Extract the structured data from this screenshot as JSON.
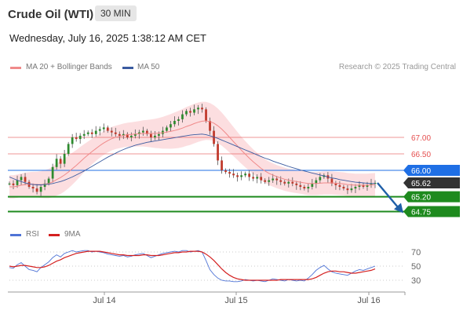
{
  "header": {
    "title": "Crude Oil (WTI)",
    "timeframe": "30 MIN",
    "datetime": "Wednesday, July 16, 2025 1:38:12 AM CET"
  },
  "legend": {
    "items": [
      {
        "label": "MA 20 + Bollinger Bands",
        "color": "#f08a8a"
      },
      {
        "label": "MA 50",
        "color": "#3a5ba0"
      }
    ],
    "credit": "Research © 2025 Trading Central"
  },
  "chart_data": [
    {
      "type": "candlestick",
      "x_ticks": [
        "Jul 14",
        "Jul 15",
        "Jul 16"
      ],
      "price_levels": [
        {
          "value": 67.0,
          "label": "67.00",
          "kind": "resistance",
          "color": "#e55050"
        },
        {
          "value": 66.5,
          "label": "66.50",
          "kind": "resistance",
          "color": "#e55050"
        },
        {
          "value": 66.0,
          "label": "66.00",
          "kind": "pivot",
          "color": "#1f6fe5"
        },
        {
          "value": 65.62,
          "label": "65.62",
          "kind": "last-price",
          "color": "#333333"
        },
        {
          "value": 65.2,
          "label": "65.20",
          "kind": "support",
          "color": "#1e8a1e"
        },
        {
          "value": 64.75,
          "label": "64.75",
          "kind": "support",
          "color": "#1e8a1e"
        }
      ],
      "close": [
        65.6,
        65.55,
        65.7,
        65.8,
        65.65,
        65.5,
        65.45,
        65.35,
        65.5,
        65.6,
        65.75,
        66.1,
        66.35,
        66.2,
        66.5,
        66.8,
        67.0,
        66.95,
        67.05,
        67.1,
        67.15,
        67.1,
        67.2,
        67.25,
        67.3,
        67.2,
        67.15,
        67.1,
        67.05,
        67.1,
        67.0,
        67.05,
        67.1,
        67.15,
        67.2,
        67.1,
        67.0,
        67.05,
        67.1,
        67.2,
        67.3,
        67.4,
        67.5,
        67.55,
        67.7,
        67.8,
        67.75,
        67.85,
        67.9,
        67.85,
        67.5,
        67.2,
        66.8,
        66.3,
        66.0,
        65.95,
        65.9,
        65.85,
        65.8,
        65.85,
        65.9,
        65.8,
        65.75,
        65.8,
        65.7,
        65.65,
        65.7,
        65.75,
        65.7,
        65.65,
        65.6,
        65.65,
        65.6,
        65.55,
        65.5,
        65.45,
        65.5,
        65.6,
        65.7,
        65.8,
        65.85,
        65.75,
        65.6,
        65.55,
        65.5,
        65.45,
        65.4,
        65.45,
        65.5,
        65.55,
        65.5,
        65.55,
        65.6,
        65.62
      ],
      "ma20": [
        65.5,
        65.5,
        65.52,
        65.55,
        65.57,
        65.58,
        65.58,
        65.57,
        65.57,
        65.58,
        65.6,
        65.65,
        65.72,
        65.78,
        65.86,
        65.95,
        66.05,
        66.15,
        66.26,
        66.37,
        66.47,
        66.57,
        66.66,
        66.75,
        66.83,
        66.9,
        66.96,
        67.0,
        67.03,
        67.06,
        67.08,
        67.09,
        67.1,
        67.11,
        67.12,
        67.12,
        67.12,
        67.12,
        67.13,
        67.14,
        67.16,
        67.18,
        67.21,
        67.24,
        67.28,
        67.33,
        67.37,
        67.42,
        67.46,
        67.49,
        67.5,
        67.48,
        67.43,
        67.35,
        67.25,
        67.13,
        67.0,
        66.87,
        66.74,
        66.61,
        66.49,
        66.37,
        66.26,
        66.16,
        66.06,
        65.98,
        65.91,
        65.86,
        65.81,
        65.77,
        65.73,
        65.7,
        65.68,
        65.66,
        65.64,
        65.62,
        65.6,
        65.6,
        65.6,
        65.61,
        65.62,
        65.62,
        65.62,
        65.61,
        65.6,
        65.59,
        65.57,
        65.56,
        65.55,
        65.55,
        65.55,
        65.55,
        65.56,
        65.57
      ],
      "ma50": [
        65.8,
        65.75,
        65.7,
        65.66,
        65.62,
        65.59,
        65.57,
        65.56,
        65.56,
        65.57,
        65.58,
        65.6,
        65.63,
        65.66,
        65.7,
        65.75,
        65.8,
        65.86,
        65.92,
        65.98,
        66.05,
        66.12,
        66.19,
        66.26,
        66.33,
        66.4,
        66.46,
        66.52,
        66.58,
        66.63,
        66.68,
        66.72,
        66.76,
        66.79,
        66.82,
        66.85,
        66.87,
        66.89,
        66.91,
        66.93,
        66.95,
        66.97,
        66.99,
        67.01,
        67.03,
        67.05,
        67.07,
        67.08,
        67.09,
        67.1,
        67.08,
        67.05,
        67.01,
        66.97,
        66.92,
        66.87,
        66.82,
        66.77,
        66.72,
        66.67,
        66.62,
        66.57,
        66.52,
        66.47,
        66.42,
        66.37,
        66.33,
        66.28,
        66.24,
        66.2,
        66.16,
        66.12,
        66.08,
        66.05,
        66.01,
        65.98,
        65.95,
        65.92,
        65.89,
        65.86,
        65.83,
        65.8,
        65.77,
        65.75,
        65.72,
        65.7,
        65.68,
        65.66,
        65.64,
        65.63,
        65.62,
        65.61,
        65.6,
        65.6
      ]
    },
    {
      "type": "line",
      "legend": [
        {
          "name": "RSI",
          "color": "#4f74d6"
        },
        {
          "name": "9MA",
          "color": "#d42020"
        }
      ],
      "y_ticks": [
        "70",
        "50",
        "30"
      ],
      "ylim": [
        20,
        80
      ],
      "series": [
        {
          "name": "RSI",
          "values": [
            48,
            47,
            52,
            55,
            50,
            45,
            44,
            42,
            48,
            52,
            56,
            62,
            66,
            63,
            68,
            70,
            72,
            70,
            71,
            72,
            72,
            70,
            71,
            70,
            69,
            67,
            66,
            65,
            64,
            65,
            63,
            64,
            66,
            67,
            68,
            65,
            62,
            64,
            66,
            68,
            69,
            70,
            71,
            70,
            72,
            72,
            70,
            71,
            72,
            70,
            58,
            45,
            38,
            33,
            30,
            29,
            29,
            28,
            28,
            29,
            31,
            30,
            29,
            30,
            29,
            28,
            30,
            32,
            31,
            30,
            29,
            31,
            30,
            29,
            30,
            29,
            33,
            38,
            44,
            48,
            51,
            46,
            42,
            40,
            39,
            38,
            37,
            40,
            43,
            45,
            44,
            46,
            48,
            50
          ]
        },
        {
          "name": "9MA",
          "values": [
            50,
            49,
            50,
            51,
            51,
            50,
            49,
            48,
            48,
            49,
            51,
            54,
            57,
            59,
            62,
            64,
            66,
            68,
            69,
            70,
            71,
            71,
            71,
            71,
            70,
            69,
            68,
            67,
            66,
            66,
            65,
            65,
            65,
            65,
            66,
            66,
            65,
            65,
            65,
            66,
            67,
            68,
            69,
            69,
            70,
            70,
            71,
            71,
            71,
            70,
            67,
            63,
            58,
            52,
            46,
            41,
            37,
            34,
            32,
            31,
            30,
            30,
            30,
            30,
            30,
            30,
            30,
            30,
            30,
            31,
            31,
            31,
            31,
            31,
            31,
            31,
            31,
            32,
            34,
            37,
            40,
            42,
            43,
            43,
            42,
            42,
            41,
            40,
            40,
            41,
            42,
            43,
            44,
            46
          ]
        }
      ]
    }
  ]
}
